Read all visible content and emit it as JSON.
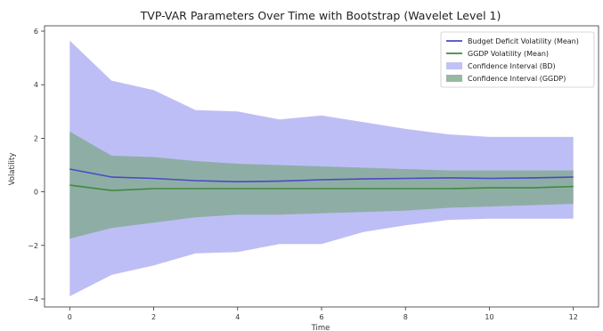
{
  "chart_data": {
    "type": "line",
    "title": "TVP-VAR Parameters Over Time with Bootstrap (Wavelet Level 1)",
    "xlabel": "Time",
    "ylabel": "Volatility",
    "xlim": [
      -0.6,
      12.6
    ],
    "ylim": [
      -4.3,
      6.2
    ],
    "xticks": [
      0,
      2,
      4,
      6,
      8,
      10,
      12
    ],
    "yticks": [
      -4,
      -2,
      0,
      2,
      4,
      6
    ],
    "x": [
      0,
      1,
      2,
      3,
      4,
      5,
      6,
      7,
      8,
      9,
      10,
      11,
      12
    ],
    "series": [
      {
        "name": "Budget Deficit Volatility (Mean)",
        "kind": "line",
        "color": "#4a4ac4",
        "values": [
          0.85,
          0.55,
          0.5,
          0.42,
          0.38,
          0.4,
          0.45,
          0.48,
          0.5,
          0.52,
          0.5,
          0.52,
          0.55
        ]
      },
      {
        "name": "GGDP Volatility (Mean)",
        "kind": "line",
        "color": "#3f8a3f",
        "values": [
          0.25,
          0.05,
          0.12,
          0.12,
          0.12,
          0.12,
          0.12,
          0.12,
          0.12,
          0.12,
          0.15,
          0.15,
          0.2
        ]
      },
      {
        "name": "Confidence Interval (BD)",
        "kind": "band",
        "color": "#b3b3f5",
        "lower": [
          -3.9,
          -3.1,
          -2.75,
          -2.3,
          -2.25,
          -1.95,
          -1.95,
          -1.5,
          -1.25,
          -1.05,
          -1.0,
          -1.0,
          -1.0
        ],
        "upper": [
          5.65,
          4.15,
          3.8,
          3.05,
          3.0,
          2.7,
          2.85,
          2.6,
          2.35,
          2.15,
          2.05,
          2.05,
          2.05
        ]
      },
      {
        "name": "Confidence Interval (GGDP)",
        "kind": "band",
        "color": "#7ea88a",
        "lower": [
          -1.75,
          -1.35,
          -1.15,
          -0.95,
          -0.85,
          -0.85,
          -0.8,
          -0.75,
          -0.7,
          -0.6,
          -0.55,
          -0.5,
          -0.45
        ],
        "upper": [
          2.25,
          1.35,
          1.3,
          1.15,
          1.05,
          1.0,
          0.95,
          0.9,
          0.85,
          0.8,
          0.8,
          0.8,
          0.8
        ]
      }
    ],
    "legend_placement": "top-right",
    "grid": false
  }
}
